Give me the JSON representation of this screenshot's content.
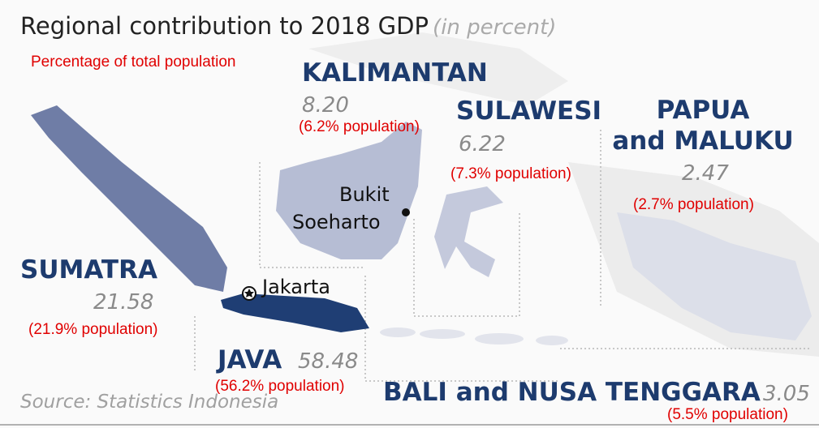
{
  "title": "Regional contribution to 2018 GDP",
  "title_note": "(in percent)",
  "legend_note": "Percentage of total population",
  "source": "Source: Statistics Indonesia",
  "regions": [
    {
      "name_lines": [
        "KALIMANTAN"
      ],
      "gdp": "8.20",
      "population": "(6.2% population)"
    },
    {
      "name_lines": [
        "SULAWESI"
      ],
      "gdp": "6.22",
      "population": "(7.3% population)"
    },
    {
      "name_lines": [
        "PAPUA",
        "and MALUKU"
      ],
      "gdp": "2.47",
      "population": "(2.7% population)"
    },
    {
      "name_lines": [
        "SUMATRA"
      ],
      "gdp": "21.58",
      "population": "(21.9% population)"
    },
    {
      "name_lines": [
        "JAVA"
      ],
      "gdp": "58.48",
      "population": "(56.2% population)"
    },
    {
      "name_lines": [
        "BALI and NUSA TENGGARA"
      ],
      "gdp": "3.05",
      "population": "(5.5% population)"
    }
  ],
  "cities": [
    {
      "name_lines": [
        "Jakarta"
      ]
    },
    {
      "name_lines": [
        "Bukit",
        "Soeharto"
      ]
    }
  ]
}
